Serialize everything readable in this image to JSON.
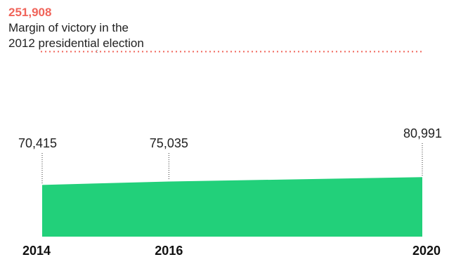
{
  "chart_data": {
    "type": "area",
    "title": "",
    "xlabel": "",
    "ylabel": "",
    "x": [
      2014,
      2016,
      2020
    ],
    "tick_labels": [
      "2014",
      "2016",
      "2020"
    ],
    "values": [
      70415,
      75035,
      80991
    ],
    "value_labels": [
      "70,415",
      "75,035",
      "80,991"
    ],
    "ylim": [
      0,
      260000
    ],
    "xlim": [
      2014,
      2020
    ],
    "grid": false,
    "legend": "none",
    "reference_line": {
      "value": 251908,
      "value_label": "251,908",
      "label_lines": [
        "Margin of victory in the",
        "2012 presidential election"
      ]
    },
    "colors": {
      "area": "#22d07a",
      "reference": "#f0645a",
      "text": "#222222",
      "leader": "#333333"
    }
  }
}
